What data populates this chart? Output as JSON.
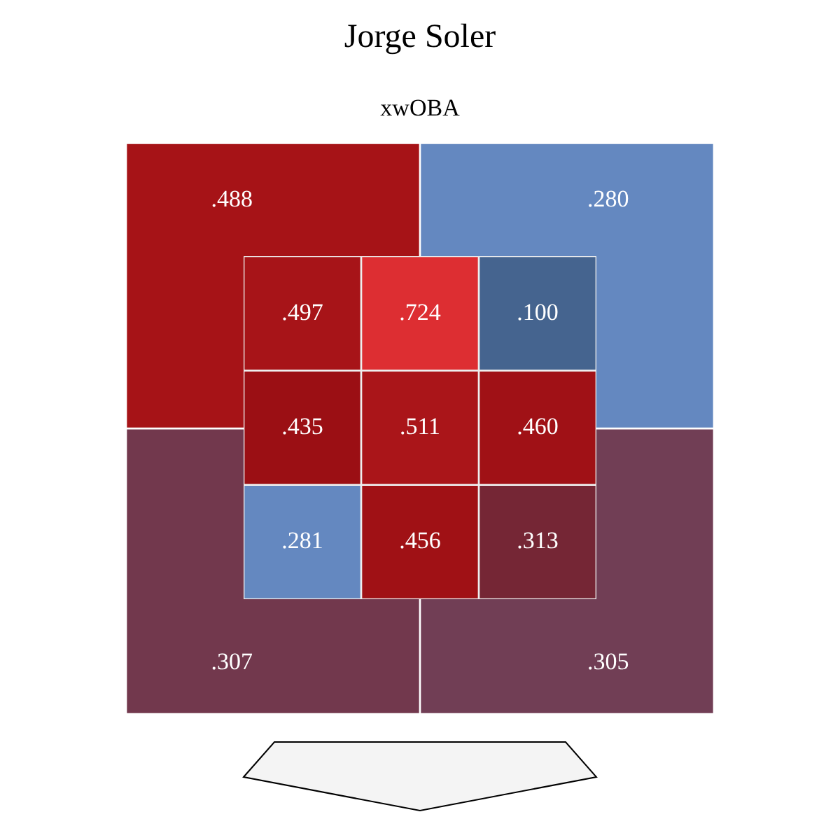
{
  "chart_data": [
    {
      "type": "heatmap",
      "title": "Jorge Soler",
      "subtitle": "xwOBA",
      "categories": [
        null,
        null
      ],
      "y_categories": [
        null,
        null
      ],
      "cells": [
        [
          0.488,
          0.28
        ],
        [
          0.307,
          0.305
        ]
      ],
      "cell_labels": [
        [
          ".488",
          ".280"
        ],
        [
          ".307",
          ".305"
        ]
      ]
    },
    {
      "type": "heatmap",
      "categories": [
        null,
        null,
        null
      ],
      "y_categories": [
        null,
        null,
        null
      ],
      "cells": [
        [
          0.497,
          0.724,
          0.1
        ],
        [
          0.435,
          0.511,
          0.46
        ],
        [
          0.281,
          0.456,
          0.313
        ]
      ],
      "cell_labels": [
        [
          ".497",
          ".724",
          ".100"
        ],
        [
          ".435",
          ".511",
          ".460"
        ],
        [
          ".281",
          ".456",
          ".313"
        ]
      ]
    }
  ]
}
